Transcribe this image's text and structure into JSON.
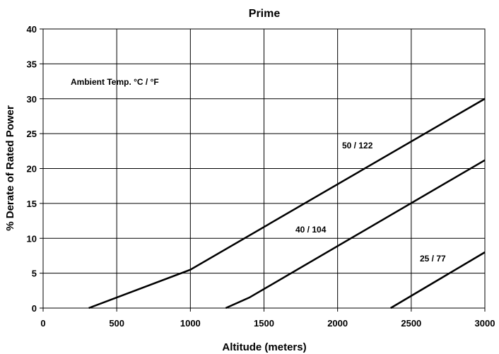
{
  "chart_data": {
    "type": "line",
    "title": "Prime",
    "xlabel": "Altitude (meters)",
    "ylabel": "% Derate of Rated Power",
    "xlim": [
      0,
      3000
    ],
    "ylim": [
      0,
      40
    ],
    "xticks": [
      0,
      500,
      1000,
      1500,
      2000,
      2500,
      3000
    ],
    "yticks": [
      0,
      5,
      10,
      15,
      20,
      25,
      30,
      35,
      40
    ],
    "grid": true,
    "legend_title": "Ambient Temp.  °C / °F",
    "series": [
      {
        "name": "50 / 122",
        "x": [
          310,
          1000,
          3000
        ],
        "y": [
          0,
          5.5,
          30
        ]
      },
      {
        "name": "40 / 104",
        "x": [
          1240,
          1400,
          3000
        ],
        "y": [
          0,
          1.5,
          21.2
        ]
      },
      {
        "name": "25 / 77",
        "x": [
          2360,
          3000
        ],
        "y": [
          0,
          8
        ]
      }
    ]
  }
}
